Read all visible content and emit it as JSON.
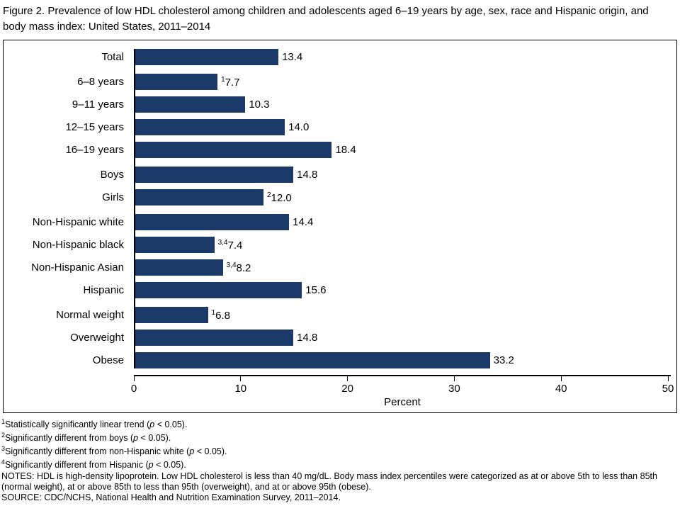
{
  "title": "Figure 2. Prevalence of low HDL cholesterol among children and adolescents aged 6–19 years by age, sex, race and Hispanic origin, and body mass index: United States, 2011–2014",
  "chart_data": {
    "type": "bar",
    "orientation": "horizontal",
    "title": "Figure 2. Prevalence of low HDL cholesterol among children and adolescents aged 6–19 years by age, sex, race and Hispanic origin, and body mass index: United States, 2011–2014",
    "xlabel": "Percent",
    "xlim": [
      0,
      50
    ],
    "xticks": [
      0,
      10,
      20,
      30,
      40,
      50
    ],
    "bar_color": "#1b3a6a",
    "grid": false,
    "legend": "none",
    "groups": [
      {
        "items": [
          {
            "label": "Total",
            "value": 13.4,
            "display": "13.4",
            "sup": ""
          }
        ]
      },
      {
        "items": [
          {
            "label": "6–8 years",
            "value": 7.7,
            "display": "7.7",
            "sup": "1"
          },
          {
            "label": "9–11 years",
            "value": 10.3,
            "display": "10.3",
            "sup": ""
          },
          {
            "label": "12–15 years",
            "value": 14.0,
            "display": "14.0",
            "sup": ""
          },
          {
            "label": "16–19 years",
            "value": 18.4,
            "display": "18.4",
            "sup": ""
          }
        ]
      },
      {
        "items": [
          {
            "label": "Boys",
            "value": 14.8,
            "display": "14.8",
            "sup": ""
          },
          {
            "label": "Girls",
            "value": 12.0,
            "display": "12.0",
            "sup": "2"
          }
        ]
      },
      {
        "items": [
          {
            "label": "Non-Hispanic white",
            "value": 14.4,
            "display": "14.4",
            "sup": ""
          },
          {
            "label": "Non-Hispanic black",
            "value": 7.4,
            "display": "7.4",
            "sup": "3,4"
          },
          {
            "label": "Non-Hispanic Asian",
            "value": 8.2,
            "display": "8.2",
            "sup": "3,4"
          },
          {
            "label": "Hispanic",
            "value": 15.6,
            "display": "15.6",
            "sup": ""
          }
        ]
      },
      {
        "items": [
          {
            "label": "Normal weight",
            "value": 6.8,
            "display": "6.8",
            "sup": "1"
          },
          {
            "label": "Overweight",
            "value": 14.8,
            "display": "14.8",
            "sup": ""
          },
          {
            "label": "Obese",
            "value": 33.2,
            "display": "33.2",
            "sup": ""
          }
        ]
      }
    ]
  },
  "footnotes": [
    {
      "sup": "1",
      "pre": "Statistically significantly linear trend (",
      "italic": "p",
      "post": " < 0.05)."
    },
    {
      "sup": "2",
      "pre": "Significantly different from boys (",
      "italic": "p",
      "post": " < 0.05)."
    },
    {
      "sup": "3",
      "pre": "Significantly different from non-Hispanic white (",
      "italic": "p",
      "post": " < 0.05)."
    },
    {
      "sup": "4",
      "pre": "Significantly different from Hispanic (",
      "italic": "p",
      "post": " < 0.05)."
    },
    {
      "sup": "",
      "pre": "NOTES: HDL is high-density lipoprotein. Low HDL cholesterol is less than 40 mg/dL. Body mass index percentiles were categorized as at or above 5th to less than 85th (normal weight), at or above 85th to less than 95th (overweight), and at or above 95th (obese).",
      "italic": "",
      "post": ""
    },
    {
      "sup": "",
      "pre": "SOURCE: CDC/NCHS, National Health and Nutrition Examination Survey, 2011–2014.",
      "italic": "",
      "post": ""
    }
  ]
}
